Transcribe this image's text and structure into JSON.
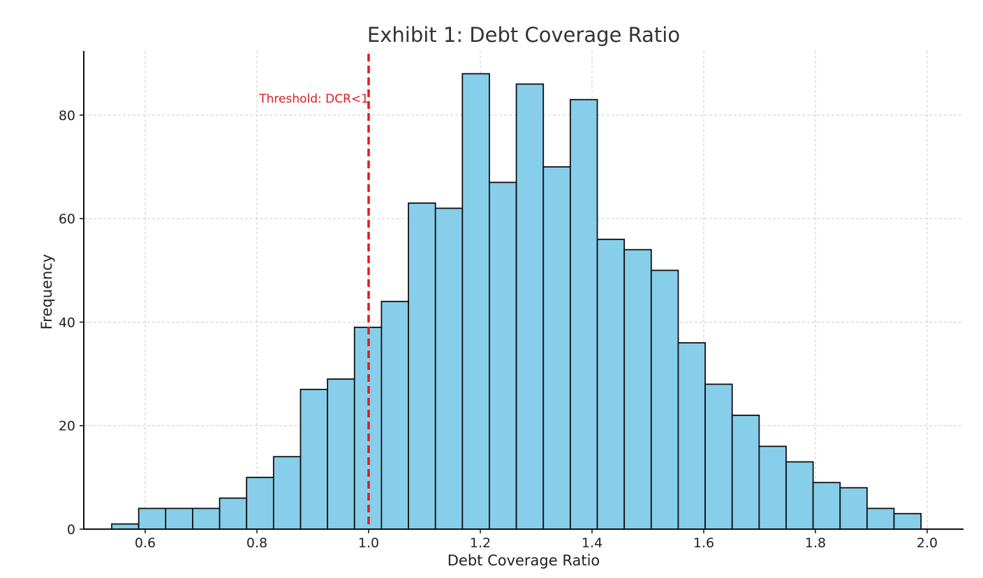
{
  "chart_data": {
    "type": "bar",
    "subtype": "histogram",
    "title": "Exhibit 1: Debt Coverage Ratio",
    "xlabel": "Debt Coverage Ratio",
    "ylabel": "Frequency",
    "xlim": [
      0.49,
      2.065
    ],
    "ylim": [
      0,
      92.4
    ],
    "xticks": [
      0.6,
      0.8,
      1.0,
      1.2,
      1.4,
      1.6,
      1.8,
      2.0
    ],
    "xtick_labels": [
      "0.6",
      "0.8",
      "1.0",
      "1.2",
      "1.4",
      "1.6",
      "1.8",
      "2.0"
    ],
    "yticks": [
      0,
      20,
      40,
      60,
      80
    ],
    "ytick_labels": [
      "0",
      "20",
      "40",
      "60",
      "80"
    ],
    "grid": true,
    "bar_color": "#87ceeb",
    "bar_edge_color": "#111111",
    "bin_start": 0.54,
    "bin_width": 0.0483,
    "values": [
      1,
      4,
      4,
      4,
      6,
      10,
      14,
      27,
      29,
      39,
      44,
      63,
      62,
      88,
      67,
      86,
      70,
      83,
      56,
      54,
      50,
      36,
      28,
      22,
      16,
      13,
      9,
      8,
      4,
      3
    ],
    "threshold": {
      "x": 1.0,
      "label": "Threshold: DCR<1",
      "color": "#e31a1c",
      "style": "dashed"
    }
  }
}
